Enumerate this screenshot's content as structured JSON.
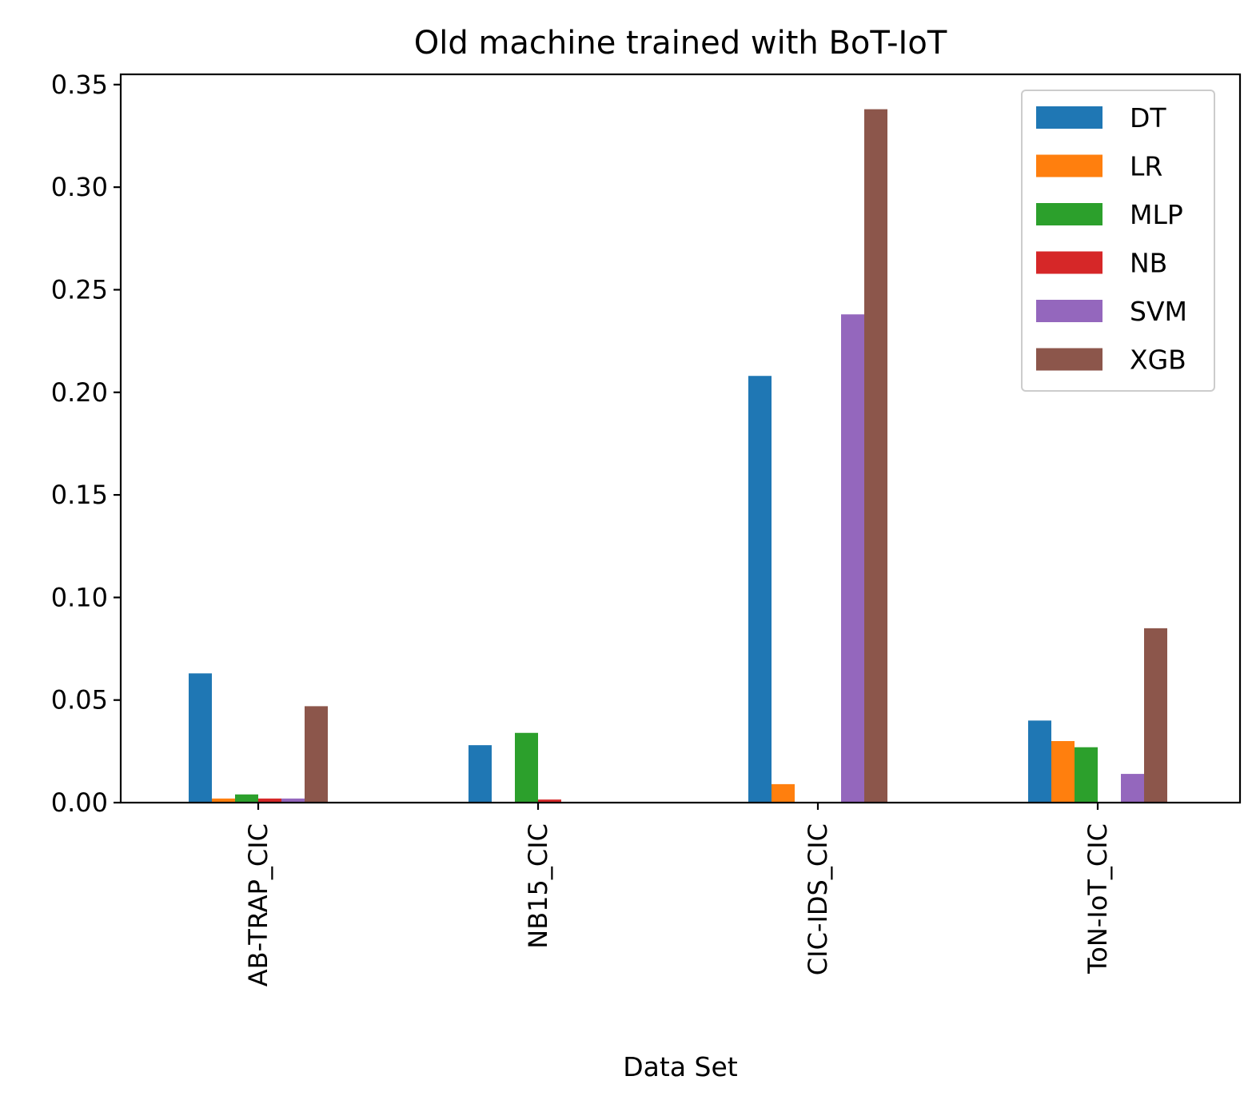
{
  "chart_data": {
    "type": "bar",
    "title": "Old machine trained with BoT-IoT",
    "xlabel": "Data Set",
    "ylabel": "",
    "categories": [
      "AB-TRAP_CIC",
      "NB15_CIC",
      "CIC-IDS_CIC",
      "ToN-IoT_CIC"
    ],
    "ylim": [
      0,
      0.355
    ],
    "yticks": [
      "0.00",
      "0.05",
      "0.10",
      "0.15",
      "0.20",
      "0.25",
      "0.30",
      "0.35"
    ],
    "grid": false,
    "legend_position": "top-right",
    "series": [
      {
        "name": "DT",
        "color": "#1f77b4",
        "values": [
          0.063,
          0.028,
          0.208,
          0.04
        ]
      },
      {
        "name": "LR",
        "color": "#ff7f0e",
        "values": [
          0.002,
          0.0,
          0.009,
          0.03
        ]
      },
      {
        "name": "MLP",
        "color": "#2ca02c",
        "values": [
          0.004,
          0.034,
          0.0,
          0.027
        ]
      },
      {
        "name": "NB",
        "color": "#d62728",
        "values": [
          0.002,
          0.0015,
          0.0,
          0.0
        ]
      },
      {
        "name": "SVM",
        "color": "#9467bd",
        "values": [
          0.002,
          0.0,
          0.238,
          0.014
        ]
      },
      {
        "name": "XGB",
        "color": "#8c564b",
        "values": [
          0.047,
          0.0,
          0.338,
          0.085
        ]
      }
    ]
  }
}
